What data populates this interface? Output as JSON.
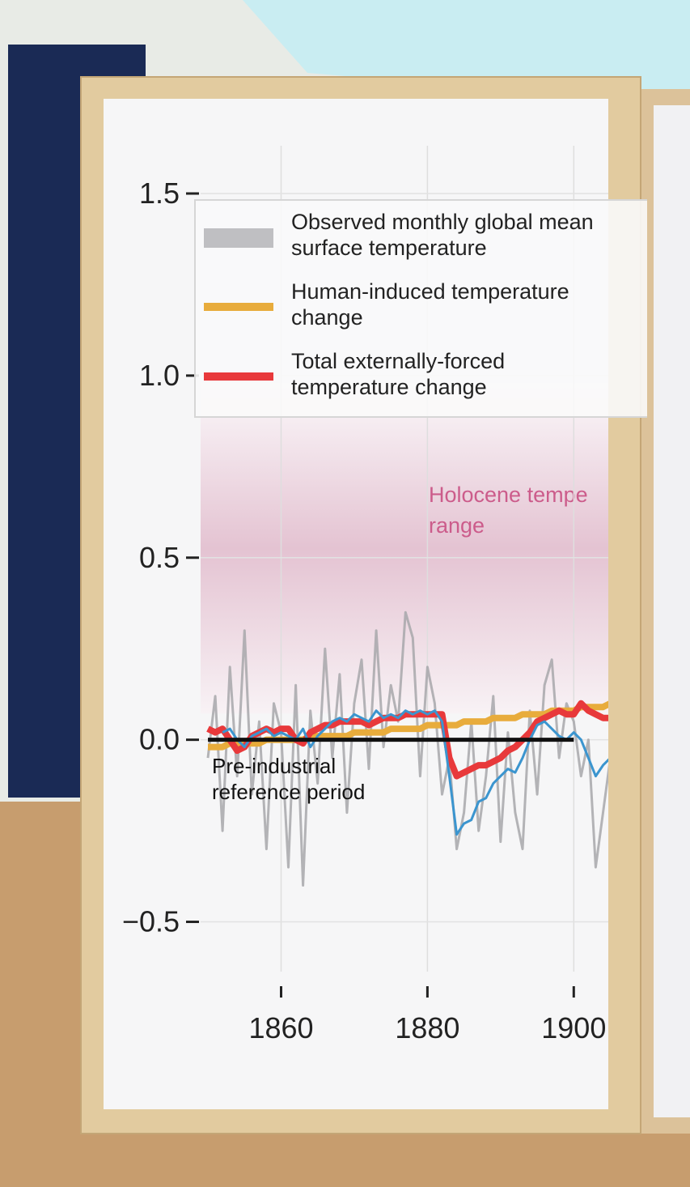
{
  "chart_data": {
    "type": "line",
    "x": [
      1850,
      1851,
      1852,
      1853,
      1854,
      1855,
      1856,
      1857,
      1858,
      1859,
      1860,
      1861,
      1862,
      1863,
      1864,
      1865,
      1866,
      1867,
      1868,
      1869,
      1870,
      1871,
      1872,
      1873,
      1874,
      1875,
      1876,
      1877,
      1878,
      1879,
      1880,
      1881,
      1882,
      1883,
      1884,
      1885,
      1886,
      1887,
      1888,
      1889,
      1890,
      1891,
      1892,
      1893,
      1894,
      1895,
      1896,
      1897,
      1898,
      1899,
      1900,
      1901,
      1902,
      1903,
      1904,
      1905
    ],
    "series": [
      {
        "name": "Observed monthly global mean surface temperature",
        "color": "#a7a7aa",
        "width": 3,
        "values": [
          -0.05,
          0.12,
          -0.25,
          0.2,
          -0.1,
          0.3,
          -0.15,
          0.05,
          -0.3,
          0.1,
          0.02,
          -0.35,
          0.15,
          -0.4,
          0.08,
          -0.12,
          0.25,
          -0.05,
          0.18,
          -0.2,
          0.1,
          0.22,
          -0.08,
          0.3,
          -0.02,
          0.15,
          0.05,
          0.35,
          0.28,
          -0.1,
          0.2,
          0.1,
          -0.15,
          -0.05,
          -0.3,
          -0.2,
          0.05,
          -0.25,
          -0.1,
          0.12,
          -0.28,
          0.02,
          -0.2,
          -0.3,
          0.08,
          -0.15,
          0.15,
          0.22,
          -0.05,
          0.1,
          0.05,
          -0.1,
          0.0,
          -0.35,
          -0.2,
          -0.05
        ]
      },
      {
        "name": "Human-induced temperature change",
        "color": "#e8ac3c",
        "width": 8,
        "values": [
          -0.02,
          -0.02,
          -0.02,
          -0.01,
          -0.01,
          -0.01,
          -0.01,
          -0.01,
          0.0,
          0.0,
          0.0,
          0.0,
          0.0,
          0.0,
          0.01,
          0.01,
          0.01,
          0.01,
          0.01,
          0.01,
          0.02,
          0.02,
          0.02,
          0.02,
          0.02,
          0.03,
          0.03,
          0.03,
          0.03,
          0.03,
          0.04,
          0.04,
          0.04,
          0.04,
          0.04,
          0.05,
          0.05,
          0.05,
          0.05,
          0.06,
          0.06,
          0.06,
          0.06,
          0.07,
          0.07,
          0.07,
          0.07,
          0.08,
          0.08,
          0.08,
          0.08,
          0.09,
          0.09,
          0.09,
          0.09,
          0.1
        ]
      },
      {
        "name": "Total externally-forced temperature change",
        "color": "#e8393b",
        "width": 8,
        "values": [
          0.03,
          0.02,
          0.03,
          0.0,
          -0.03,
          -0.02,
          0.01,
          0.02,
          0.03,
          0.02,
          0.03,
          0.03,
          0.0,
          -0.01,
          0.02,
          0.03,
          0.04,
          0.04,
          0.05,
          0.05,
          0.05,
          0.05,
          0.04,
          0.05,
          0.06,
          0.06,
          0.06,
          0.07,
          0.07,
          0.07,
          0.07,
          0.07,
          0.07,
          -0.05,
          -0.1,
          -0.09,
          -0.08,
          -0.07,
          -0.07,
          -0.06,
          -0.05,
          -0.03,
          -0.02,
          0.0,
          0.02,
          0.05,
          0.06,
          0.07,
          0.08,
          0.07,
          0.07,
          0.1,
          0.08,
          0.07,
          0.06,
          0.06
        ]
      },
      {
        "color": "#3b95cf",
        "width": 3,
        "values": [
          null,
          null,
          0.02,
          0.03,
          0.0,
          -0.02,
          0.01,
          0.02,
          0.03,
          0.01,
          0.02,
          0.01,
          0.0,
          0.03,
          -0.02,
          0.01,
          0.03,
          0.05,
          0.06,
          0.05,
          0.07,
          0.06,
          0.05,
          0.08,
          0.06,
          0.07,
          0.06,
          0.08,
          0.07,
          0.08,
          0.07,
          0.08,
          0.05,
          -0.1,
          -0.26,
          -0.23,
          -0.22,
          -0.17,
          -0.16,
          -0.12,
          -0.1,
          -0.08,
          -0.09,
          -0.05,
          0.0,
          0.04,
          0.05,
          0.03,
          0.01,
          0.0,
          0.02,
          0.0,
          -0.05,
          -0.1,
          -0.07,
          -0.05
        ]
      }
    ],
    "xlim": [
      1849,
      1904.5
    ],
    "xticks": [
      1860,
      1880,
      1900
    ],
    "ylim": [
      -0.57,
      1.52
    ],
    "yticks": [
      {
        "value": -0.5,
        "label": "−0.5"
      },
      {
        "value": 0,
        "label": "0.0"
      },
      {
        "value": 0.5,
        "label": "0.5"
      },
      {
        "value": 1,
        "label": "1.0"
      },
      {
        "value": 1.5,
        "label": "1.5"
      }
    ],
    "grid": true,
    "band": {
      "lines": [
        "Holocene tempe",
        "range"
      ],
      "range": [
        0.25,
        0.8
      ],
      "color": "#e4c3d2"
    },
    "reference": {
      "label": "Pre-industrial reference period",
      "y": 0,
      "x": [
        1850,
        1900
      ],
      "color": "#111111"
    }
  }
}
